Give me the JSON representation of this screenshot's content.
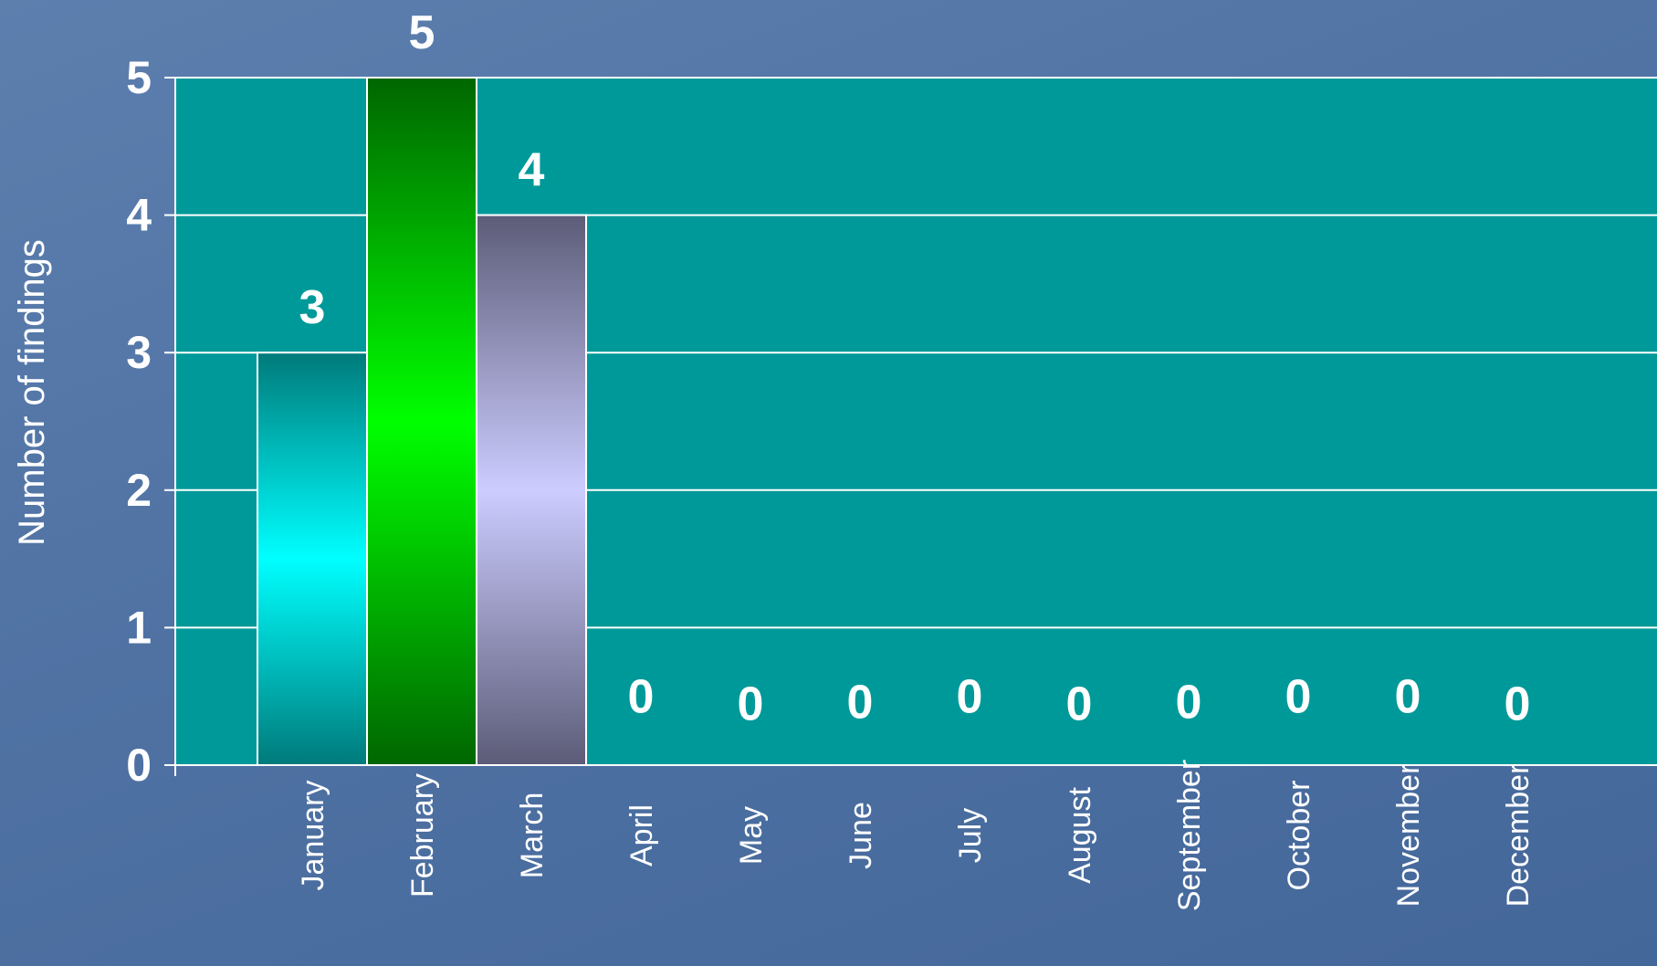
{
  "chart_data": {
    "type": "bar",
    "ylabel": "Number of findings",
    "xlabel": "",
    "categories": [
      "January",
      "February",
      "March",
      "April",
      "May",
      "June",
      "July",
      "August",
      "September",
      "October",
      "November",
      "December"
    ],
    "values": [
      3,
      5,
      4,
      0,
      0,
      0,
      0,
      0,
      0,
      0,
      0,
      0
    ],
    "ylim": [
      0,
      5
    ],
    "yticks": [
      0,
      1,
      2,
      3,
      4,
      5
    ],
    "grid": true,
    "plot_background": "#009999",
    "bar_colors": [
      [
        "#007a7a",
        "#00ffff",
        "#007a7a"
      ],
      [
        "#006600",
        "#00ff00",
        "#006600"
      ],
      [
        "#5c5c78",
        "#ccccff",
        "#5c5c78"
      ]
    ]
  }
}
